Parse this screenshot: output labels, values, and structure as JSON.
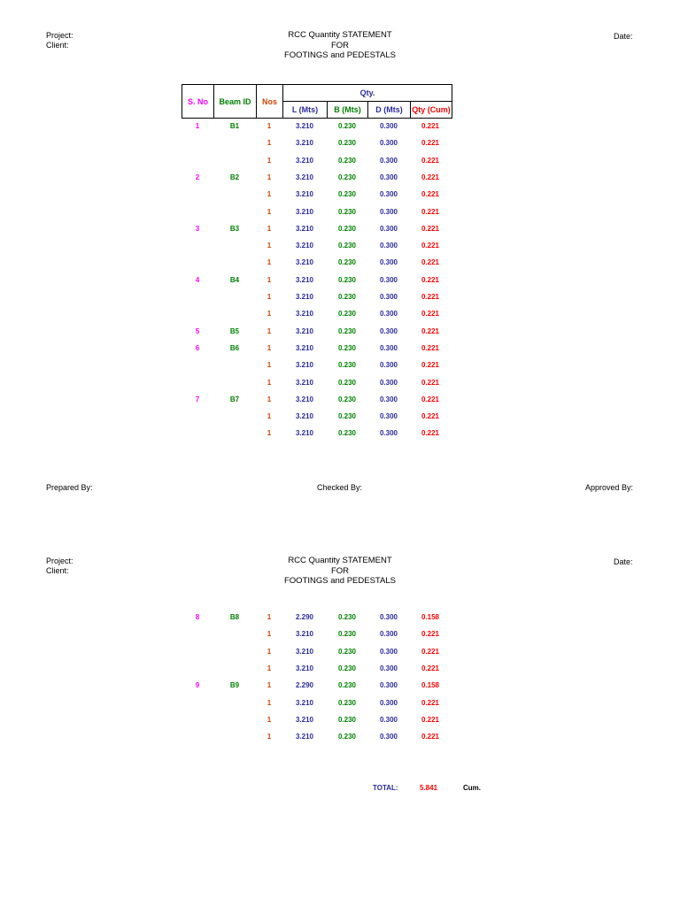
{
  "colors": {
    "sno": "#ff00ff",
    "beam": "#008000",
    "nos": "#cc4400",
    "length": "#2b2b9a",
    "breadth": "#008000",
    "depth": "#2b2b9a",
    "qty": "#ff0000"
  },
  "page1": {
    "project_label": "Project:",
    "client_label": "Client:",
    "date_label": "Date:",
    "title": [
      "RCC Quantity STATEMENT",
      "FOR",
      "FOOTINGS and PEDESTALS"
    ],
    "prepared_by": "Prepared By:",
    "checked_by": "Checked By:",
    "approved_by": "Approved By:"
  },
  "table_header": {
    "sno": "S. No",
    "beam_id": "Beam ID",
    "nos": "Nos",
    "qty_group": "Qty.",
    "length": "L (Mts)",
    "breadth": "B (Mts)",
    "depth": "D (Mts)",
    "qty": "Qty (Cum)"
  },
  "rows_page1": [
    {
      "sno": "1",
      "beam": "B1",
      "nos": "1",
      "l": "3.210",
      "b": "0.230",
      "d": "0.300",
      "q": "0.221"
    },
    {
      "sno": "",
      "beam": "",
      "nos": "1",
      "l": "3.210",
      "b": "0.230",
      "d": "0.300",
      "q": "0.221"
    },
    {
      "sno": "",
      "beam": "",
      "nos": "1",
      "l": "3.210",
      "b": "0.230",
      "d": "0.300",
      "q": "0.221"
    },
    {
      "sno": "2",
      "beam": "B2",
      "nos": "1",
      "l": "3.210",
      "b": "0.230",
      "d": "0.300",
      "q": "0.221"
    },
    {
      "sno": "",
      "beam": "",
      "nos": "1",
      "l": "3.210",
      "b": "0.230",
      "d": "0.300",
      "q": "0.221"
    },
    {
      "sno": "",
      "beam": "",
      "nos": "1",
      "l": "3.210",
      "b": "0.230",
      "d": "0.300",
      "q": "0.221"
    },
    {
      "sno": "3",
      "beam": "B3",
      "nos": "1",
      "l": "3.210",
      "b": "0.230",
      "d": "0.300",
      "q": "0.221"
    },
    {
      "sno": "",
      "beam": "",
      "nos": "1",
      "l": "3.210",
      "b": "0.230",
      "d": "0.300",
      "q": "0.221"
    },
    {
      "sno": "",
      "beam": "",
      "nos": "1",
      "l": "3.210",
      "b": "0.230",
      "d": "0.300",
      "q": "0.221"
    },
    {
      "sno": "4",
      "beam": "B4",
      "nos": "1",
      "l": "3.210",
      "b": "0.230",
      "d": "0.300",
      "q": "0.221"
    },
    {
      "sno": "",
      "beam": "",
      "nos": "1",
      "l": "3.210",
      "b": "0.230",
      "d": "0.300",
      "q": "0.221"
    },
    {
      "sno": "",
      "beam": "",
      "nos": "1",
      "l": "3.210",
      "b": "0.230",
      "d": "0.300",
      "q": "0.221"
    },
    {
      "sno": "5",
      "beam": "B5",
      "nos": "1",
      "l": "3.210",
      "b": "0.230",
      "d": "0.300",
      "q": "0.221"
    },
    {
      "sno": "6",
      "beam": "B6",
      "nos": "1",
      "l": "3.210",
      "b": "0.230",
      "d": "0.300",
      "q": "0.221"
    },
    {
      "sno": "",
      "beam": "",
      "nos": "1",
      "l": "3.210",
      "b": "0.230",
      "d": "0.300",
      "q": "0.221"
    },
    {
      "sno": "",
      "beam": "",
      "nos": "1",
      "l": "3.210",
      "b": "0.230",
      "d": "0.300",
      "q": "0.221"
    },
    {
      "sno": "7",
      "beam": "B7",
      "nos": "1",
      "l": "3.210",
      "b": "0.230",
      "d": "0.300",
      "q": "0.221"
    },
    {
      "sno": "",
      "beam": "",
      "nos": "1",
      "l": "3.210",
      "b": "0.230",
      "d": "0.300",
      "q": "0.221"
    },
    {
      "sno": "",
      "beam": "",
      "nos": "1",
      "l": "3.210",
      "b": "0.230",
      "d": "0.300",
      "q": "0.221"
    }
  ],
  "page2": {
    "project_label": "Project:",
    "client_label": "Client:",
    "date_label": "Date:",
    "title": [
      "RCC Quantity STATEMENT",
      "FOR",
      "FOOTINGS and PEDESTALS"
    ]
  },
  "rows_page2": [
    {
      "sno": "8",
      "beam": "B8",
      "nos": "1",
      "l": "2.290",
      "b": "0.230",
      "d": "0.300",
      "q": "0.158"
    },
    {
      "sno": "",
      "beam": "",
      "nos": "1",
      "l": "3.210",
      "b": "0.230",
      "d": "0.300",
      "q": "0.221"
    },
    {
      "sno": "",
      "beam": "",
      "nos": "1",
      "l": "3.210",
      "b": "0.230",
      "d": "0.300",
      "q": "0.221"
    },
    {
      "sno": "",
      "beam": "",
      "nos": "1",
      "l": "3.210",
      "b": "0.230",
      "d": "0.300",
      "q": "0.221"
    },
    {
      "sno": "9",
      "beam": "B9",
      "nos": "1",
      "l": "2.290",
      "b": "0.230",
      "d": "0.300",
      "q": "0.158"
    },
    {
      "sno": "",
      "beam": "",
      "nos": "1",
      "l": "3.210",
      "b": "0.230",
      "d": "0.300",
      "q": "0.221"
    },
    {
      "sno": "",
      "beam": "",
      "nos": "1",
      "l": "3.210",
      "b": "0.230",
      "d": "0.300",
      "q": "0.221"
    },
    {
      "sno": "",
      "beam": "",
      "nos": "1",
      "l": "3.210",
      "b": "0.230",
      "d": "0.300",
      "q": "0.221"
    }
  ],
  "total": {
    "label": "TOTAL:",
    "value": "5.841",
    "unit": "Cum."
  }
}
